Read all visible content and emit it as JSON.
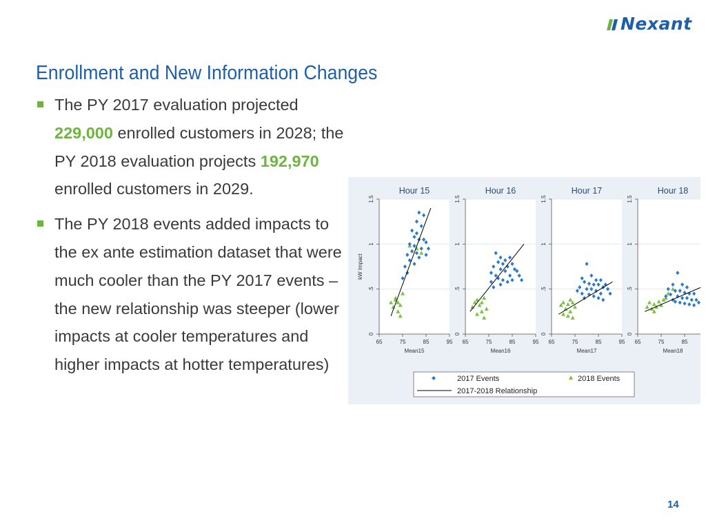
{
  "slide": {
    "title": "Enrollment and New Information Changes",
    "logo_text": "Nexant",
    "page_number": "14",
    "accent_color": "#1f5fa8",
    "highlight_color": "#6eb43f"
  },
  "bullets": [
    {
      "pre": "The PY 2017 evaluation projected ",
      "hl1": "229,000",
      "mid": " enrolled customers in 2028; the PY 2018 evaluation projects ",
      "hl2": "192,970",
      "post": " enrolled customers in 2029."
    },
    {
      "text": "The PY 2018 events added impacts to the ex ante estimation dataset that were much cooler than the PY 2017 events – the new relationship was steeper (lower impacts at cooler temperatures and higher impacts at hotter temperatures)"
    }
  ],
  "chart_data": {
    "type": "scatter",
    "ylabel": "kW Impact",
    "ylim": [
      0,
      1.5
    ],
    "yticks": [
      "0",
      ".5",
      "1",
      "1.5"
    ],
    "xlim": [
      65,
      95
    ],
    "xticks": [
      "65",
      "75",
      "85",
      "95"
    ],
    "grid": true,
    "legend_position": "bottom",
    "legend": [
      {
        "label": "2017 Events",
        "marker": "diamond",
        "color": "#2d7bc8"
      },
      {
        "label": "2018 Events",
        "marker": "triangle",
        "color": "#7ec043"
      },
      {
        "label": "2017-2018 Relationship",
        "marker": "line",
        "color": "#000000"
      }
    ],
    "panels": [
      {
        "title": "Hour 15",
        "xlabel": "Mean15",
        "fit": [
          [
            70,
            0.2
          ],
          [
            87,
            1.4
          ]
        ],
        "s2017": [
          [
            82,
            1.35
          ],
          [
            84,
            1.32
          ],
          [
            81,
            1.25
          ],
          [
            83,
            1.2
          ],
          [
            79,
            1.15
          ],
          [
            81,
            1.12
          ],
          [
            80,
            1.08
          ],
          [
            82,
            1.05
          ],
          [
            84,
            1.05
          ],
          [
            78,
            1.0
          ],
          [
            80,
            0.98
          ],
          [
            85,
            1.02
          ],
          [
            83,
            0.95
          ],
          [
            79,
            0.92
          ],
          [
            81,
            0.9
          ],
          [
            77,
            0.88
          ],
          [
            85,
            0.88
          ],
          [
            78,
            0.82
          ],
          [
            80,
            0.78
          ],
          [
            76,
            0.75
          ],
          [
            77,
            0.68
          ],
          [
            75,
            0.62
          ],
          [
            86,
            0.95
          ],
          [
            82,
            0.85
          ]
        ],
        "s2018": [
          [
            78,
            0.98
          ],
          [
            81,
            0.95
          ],
          [
            83,
            0.9
          ],
          [
            72,
            0.38
          ],
          [
            73,
            0.35
          ],
          [
            74,
            0.32
          ],
          [
            71,
            0.3
          ],
          [
            75,
            0.45
          ],
          [
            73,
            0.25
          ],
          [
            74,
            0.2
          ],
          [
            72,
            0.4
          ],
          [
            70,
            0.35
          ]
        ]
      },
      {
        "title": "Hour 16",
        "xlabel": "Mean16",
        "fit": [
          [
            67,
            0.25
          ],
          [
            90,
            1.0
          ]
        ],
        "s2017": [
          [
            78,
            0.9
          ],
          [
            80,
            0.85
          ],
          [
            82,
            0.82
          ],
          [
            84,
            0.85
          ],
          [
            79,
            0.8
          ],
          [
            81,
            0.78
          ],
          [
            77,
            0.75
          ],
          [
            83,
            0.75
          ],
          [
            85,
            0.78
          ],
          [
            86,
            0.72
          ],
          [
            80,
            0.72
          ],
          [
            82,
            0.7
          ],
          [
            76,
            0.68
          ],
          [
            78,
            0.65
          ],
          [
            84,
            0.65
          ],
          [
            87,
            0.7
          ],
          [
            88,
            0.65
          ],
          [
            79,
            0.62
          ],
          [
            81,
            0.6
          ],
          [
            76,
            0.58
          ],
          [
            89,
            0.6
          ],
          [
            85,
            0.6
          ],
          [
            83,
            0.58
          ],
          [
            80,
            0.55
          ],
          [
            77,
            0.52
          ]
        ],
        "s2018": [
          [
            70,
            0.38
          ],
          [
            72,
            0.35
          ],
          [
            73,
            0.4
          ],
          [
            71,
            0.32
          ],
          [
            68,
            0.3
          ],
          [
            74,
            0.28
          ],
          [
            72,
            0.25
          ],
          [
            70,
            0.22
          ],
          [
            73,
            0.18
          ],
          [
            69,
            0.35
          ]
        ]
      },
      {
        "title": "Hour 17",
        "xlabel": "Mean17",
        "fit": [
          [
            68,
            0.22
          ],
          [
            91,
            0.58
          ]
        ],
        "s2017": [
          [
            80,
            0.78
          ],
          [
            78,
            0.62
          ],
          [
            82,
            0.65
          ],
          [
            84,
            0.6
          ],
          [
            86,
            0.6
          ],
          [
            79,
            0.58
          ],
          [
            81,
            0.56
          ],
          [
            83,
            0.55
          ],
          [
            85,
            0.55
          ],
          [
            87,
            0.52
          ],
          [
            88,
            0.55
          ],
          [
            77,
            0.52
          ],
          [
            80,
            0.5
          ],
          [
            82,
            0.5
          ],
          [
            84,
            0.48
          ],
          [
            86,
            0.45
          ],
          [
            89,
            0.5
          ],
          [
            78,
            0.45
          ],
          [
            81,
            0.44
          ],
          [
            83,
            0.42
          ],
          [
            85,
            0.4
          ],
          [
            87,
            0.38
          ],
          [
            79,
            0.4
          ],
          [
            90,
            0.45
          ],
          [
            76,
            0.48
          ]
        ],
        "s2018": [
          [
            70,
            0.35
          ],
          [
            72,
            0.33
          ],
          [
            74,
            0.35
          ],
          [
            71,
            0.28
          ],
          [
            73,
            0.25
          ],
          [
            70,
            0.22
          ],
          [
            72,
            0.2
          ],
          [
            74,
            0.18
          ],
          [
            75,
            0.3
          ],
          [
            69,
            0.32
          ],
          [
            73,
            0.38
          ]
        ]
      },
      {
        "title": "Hour 18",
        "xlabel": "Mean18",
        "fit": [
          [
            68,
            0.25
          ],
          [
            92,
            0.52
          ]
        ],
        "s2017": [
          [
            82,
            0.68
          ],
          [
            80,
            0.55
          ],
          [
            84,
            0.55
          ],
          [
            86,
            0.52
          ],
          [
            78,
            0.5
          ],
          [
            81,
            0.48
          ],
          [
            83,
            0.48
          ],
          [
            85,
            0.46
          ],
          [
            87,
            0.45
          ],
          [
            89,
            0.45
          ],
          [
            79,
            0.44
          ],
          [
            82,
            0.42
          ],
          [
            84,
            0.4
          ],
          [
            86,
            0.4
          ],
          [
            88,
            0.38
          ],
          [
            90,
            0.38
          ],
          [
            80,
            0.38
          ],
          [
            83,
            0.35
          ],
          [
            85,
            0.34
          ],
          [
            87,
            0.33
          ],
          [
            91,
            0.35
          ],
          [
            77,
            0.42
          ],
          [
            81,
            0.36
          ],
          [
            89,
            0.32
          ]
        ],
        "s2018": [
          [
            70,
            0.35
          ],
          [
            72,
            0.33
          ],
          [
            74,
            0.36
          ],
          [
            76,
            0.38
          ],
          [
            71,
            0.28
          ],
          [
            73,
            0.3
          ],
          [
            75,
            0.32
          ],
          [
            78,
            0.45
          ],
          [
            80,
            0.5
          ],
          [
            69,
            0.3
          ],
          [
            72,
            0.25
          ],
          [
            77,
            0.4
          ]
        ]
      }
    ]
  }
}
